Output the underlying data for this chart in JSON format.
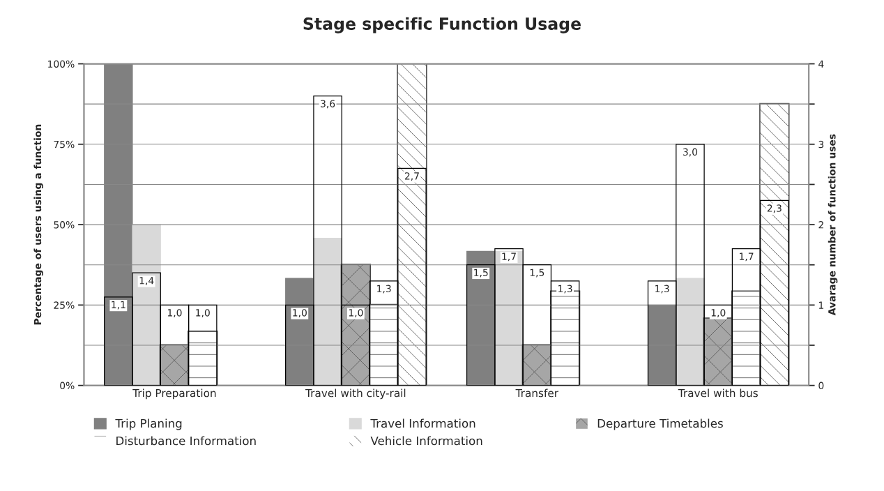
{
  "chart_data": {
    "type": "bar",
    "title": "Stage specific Function Usage",
    "ylabel": "Percentage of users using a function",
    "y2label": "Avarage number of function uses",
    "categories": [
      "Trip Preparation",
      "Travel with city-rail",
      "Transfer",
      "Travel with bus"
    ],
    "series": [
      {
        "name": "Trip Planing",
        "color": "#808080",
        "values": [
          100,
          33.3,
          41.7,
          25
        ]
      },
      {
        "name": "Travel Information",
        "color": "#d9d9d9",
        "values": [
          50,
          45.8,
          41.7,
          33.3
        ]
      },
      {
        "name": "Departure Timetables",
        "color": "#a6a6a6",
        "values": [
          12.5,
          37.5,
          12.5,
          20.8
        ]
      },
      {
        "name": "Disturbance Information",
        "color": "#ffffff",
        "values": [
          16.7,
          25,
          29.2,
          29.2
        ]
      },
      {
        "name": "Vehicle Information",
        "color": "#ffffff",
        "values": [
          null,
          100,
          null,
          87.5
        ]
      },
      {
        "axis": "y2",
        "color": "#000000",
        "values": [
          1.1,
          1.0,
          1.5,
          1.3
        ],
        "value_labels": [
          "1,1",
          "1,0",
          "1,5",
          "1,3"
        ]
      },
      {
        "axis": "y2",
        "color": "#000000",
        "values": [
          1.4,
          3.6,
          1.7,
          3.0
        ],
        "value_labels": [
          "1,4",
          "3,6",
          "1,7",
          "3,0"
        ]
      },
      {
        "axis": "y2",
        "color": "#000000",
        "values": [
          1.0,
          1.0,
          1.5,
          1.0
        ],
        "value_labels": [
          "1,0",
          "1,0",
          "1,5",
          "1,0"
        ]
      },
      {
        "axis": "y2",
        "color": "#000000",
        "values": [
          1.0,
          1.3,
          1.3,
          1.7
        ],
        "value_labels": [
          "1,0",
          "1,3",
          "1,3",
          "1,7"
        ]
      },
      {
        "axis": "y2",
        "color": "#000000",
        "values": [
          null,
          2.7,
          null,
          2.3
        ],
        "value_labels": [
          null,
          "2,7",
          null,
          "2,3"
        ]
      }
    ],
    "ylim": [
      0,
      100
    ],
    "yticks": [
      {
        "value": 0,
        "label": "0%"
      },
      {
        "value": 25,
        "label": "25%"
      },
      {
        "value": 50,
        "label": "50%"
      },
      {
        "value": 75,
        "label": "75%"
      },
      {
        "value": 100,
        "label": "100%"
      }
    ],
    "y2lim": [
      0,
      4
    ],
    "y2ticks": [
      0,
      {
        "value": 0.5,
        "label": null
      },
      1,
      {
        "value": 1.5,
        "label": null
      },
      2,
      {
        "value": 2.5,
        "label": null
      },
      3,
      {
        "value": 3.5,
        "label": null
      },
      4
    ],
    "grid": "y2",
    "legend": "bottom"
  }
}
